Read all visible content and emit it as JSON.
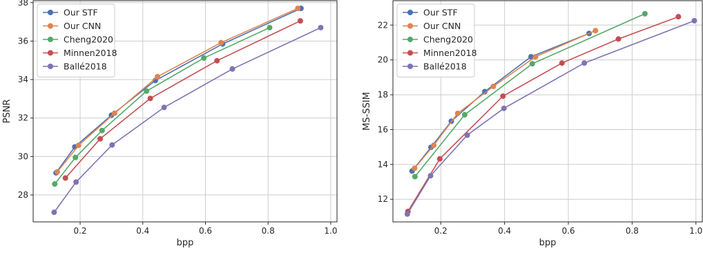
{
  "colors": {
    "Our STF": "#4c72b0",
    "Our CNN": "#dd8452",
    "Cheng2020": "#55a868",
    "Minnen2018": "#c44e52",
    "Ballé2018": "#8172b3",
    "grid": "#cccccc",
    "axis": "#262626"
  },
  "chart_data": [
    {
      "type": "line",
      "xlabel": "bpp",
      "ylabel": "PSNR",
      "xlim": [
        0.05,
        1.02
      ],
      "ylim": [
        26.6,
        38.1
      ],
      "xticks": [
        0.2,
        0.4,
        0.6,
        0.8,
        1.0
      ],
      "yticks": [
        28,
        30,
        32,
        34,
        36,
        38
      ],
      "xtick_labels": [
        "0.2",
        "0.4",
        "0.6",
        "0.8",
        "1.0"
      ],
      "ytick_labels": [
        "28",
        "30",
        "32",
        "34",
        "36",
        "38"
      ],
      "grid": true,
      "legend": "top-left",
      "series": [
        {
          "name": "Our STF",
          "x": [
            0.123,
            0.183,
            0.3,
            0.44,
            0.655,
            0.905
          ],
          "y": [
            29.15,
            30.5,
            32.15,
            33.95,
            35.85,
            37.7
          ]
        },
        {
          "name": "Our CNN",
          "x": [
            0.127,
            0.195,
            0.31,
            0.447,
            0.65,
            0.895
          ],
          "y": [
            29.2,
            30.58,
            32.25,
            34.15,
            35.92,
            37.7
          ]
        },
        {
          "name": "Cheng2020",
          "x": [
            0.119,
            0.185,
            0.27,
            0.412,
            0.595,
            0.805
          ],
          "y": [
            28.57,
            29.95,
            31.35,
            33.4,
            35.12,
            36.7
          ]
        },
        {
          "name": "Minnen2018",
          "x": [
            0.153,
            0.264,
            0.424,
            0.637,
            0.903
          ],
          "y": [
            28.88,
            30.92,
            33.02,
            34.98,
            37.05
          ]
        },
        {
          "name": "Ballé2018",
          "x": [
            0.117,
            0.187,
            0.302,
            0.468,
            0.686,
            0.968
          ],
          "y": [
            27.1,
            28.67,
            30.6,
            32.55,
            34.55,
            36.7
          ]
        }
      ]
    },
    {
      "type": "line",
      "xlabel": "bpp",
      "ylabel": "MS-SSIM",
      "xlim": [
        0.05,
        1.02
      ],
      "ylim": [
        10.7,
        23.4
      ],
      "xticks": [
        0.2,
        0.4,
        0.6,
        0.8,
        1.0
      ],
      "yticks": [
        12,
        14,
        16,
        18,
        20,
        22
      ],
      "xtick_labels": [
        "0.2",
        "0.4",
        "0.6",
        "0.8",
        "1.0"
      ],
      "ytick_labels": [
        "12",
        "14",
        "16",
        "18",
        "20",
        "22"
      ],
      "grid": true,
      "legend": "top-left",
      "series": [
        {
          "name": "Our STF",
          "x": [
            0.11,
            0.169,
            0.233,
            0.338,
            0.483,
            0.665
          ],
          "y": [
            13.62,
            14.98,
            16.48,
            18.18,
            20.18,
            21.52
          ]
        },
        {
          "name": "Our CNN",
          "x": [
            0.118,
            0.178,
            0.253,
            0.365,
            0.497,
            0.685
          ],
          "y": [
            13.78,
            15.1,
            16.93,
            18.48,
            20.18,
            21.68
          ]
        },
        {
          "name": "Cheng2020",
          "x": [
            0.119,
            0.275,
            0.487,
            0.84
          ],
          "y": [
            13.3,
            16.85,
            19.78,
            22.65
          ]
        },
        {
          "name": "Minnen2018",
          "x": [
            0.097,
            0.197,
            0.395,
            0.58,
            0.757,
            0.945
          ],
          "y": [
            11.3,
            14.32,
            17.92,
            19.82,
            21.2,
            22.48
          ]
        },
        {
          "name": "Ballé2018",
          "x": [
            0.095,
            0.168,
            0.283,
            0.398,
            0.65,
            0.995
          ],
          "y": [
            11.15,
            13.35,
            15.68,
            17.22,
            19.82,
            22.25
          ]
        }
      ]
    }
  ]
}
